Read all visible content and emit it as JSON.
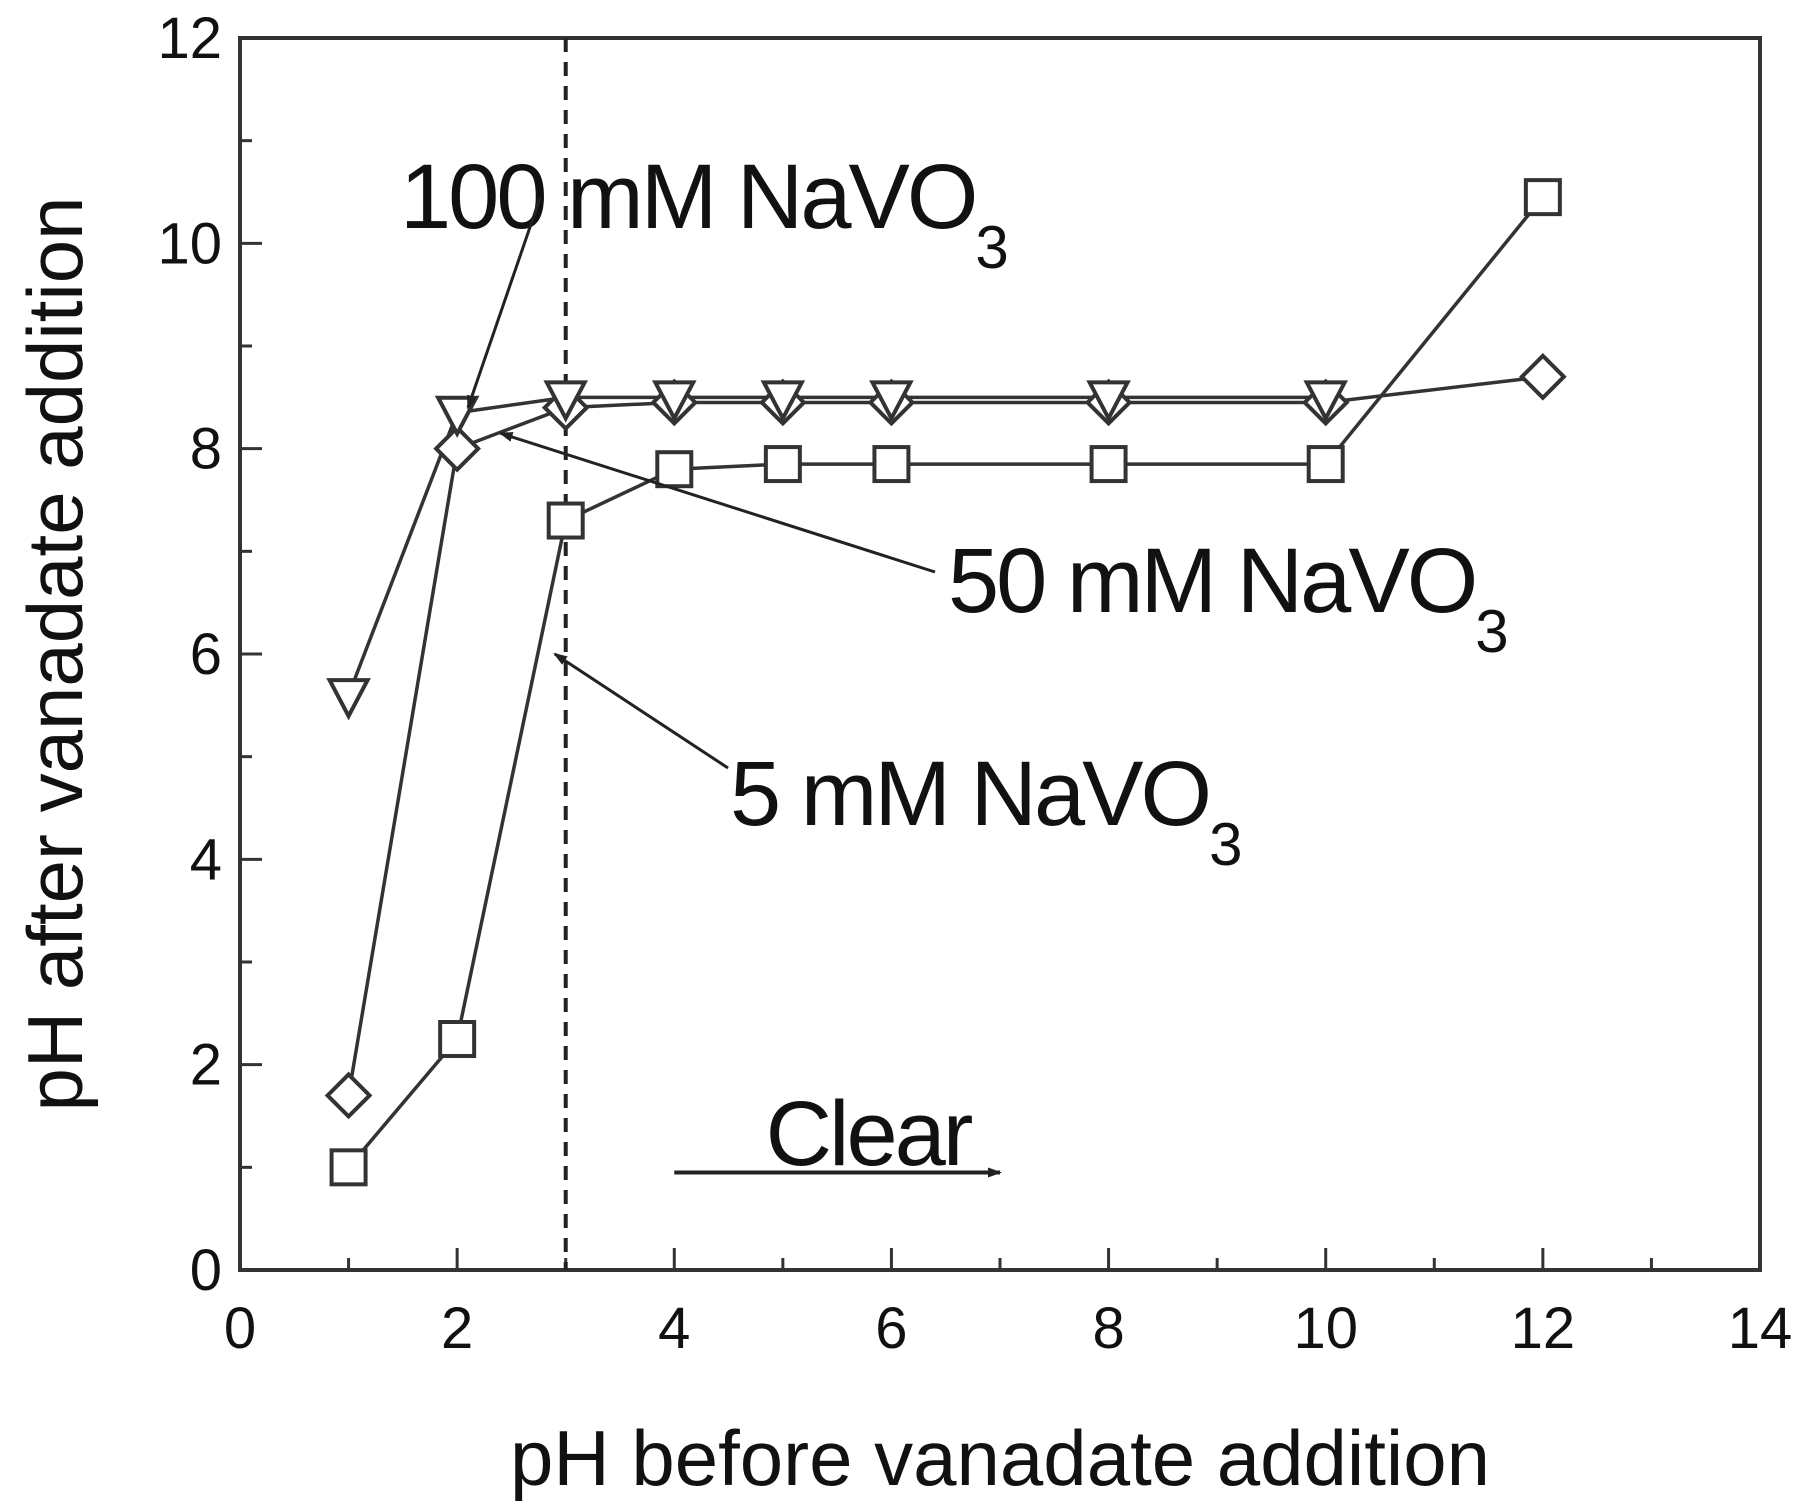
{
  "chart_data": {
    "type": "line",
    "xlabel": "pH before vanadate addition",
    "ylabel": "pH after vanadate addition",
    "xlim": [
      0,
      14
    ],
    "ylim": [
      0,
      12
    ],
    "xticks": [
      0,
      2,
      4,
      6,
      8,
      10,
      12,
      14
    ],
    "yticks": [
      0,
      2,
      4,
      6,
      8,
      10,
      12
    ],
    "grid": false,
    "reference_line": {
      "x": 3,
      "style": "dashed"
    },
    "series": [
      {
        "name": "5 mM NaVO3",
        "marker": "square",
        "x": [
          1,
          2,
          3,
          4,
          5,
          6,
          8,
          10,
          12
        ],
        "y": [
          1.0,
          2.25,
          7.3,
          7.8,
          7.85,
          7.85,
          7.85,
          7.85,
          10.45
        ]
      },
      {
        "name": "50 mM NaVO3",
        "marker": "diamond",
        "x": [
          1,
          2,
          3,
          4,
          5,
          6,
          8,
          10,
          12
        ],
        "y": [
          1.7,
          8.0,
          8.4,
          8.45,
          8.45,
          8.45,
          8.45,
          8.45,
          8.7
        ]
      },
      {
        "name": "100 mM NaVO3",
        "marker": "triangle-down",
        "x": [
          1,
          2,
          3,
          4,
          5,
          6,
          8,
          10
        ],
        "y": [
          5.6,
          8.35,
          8.5,
          8.5,
          8.5,
          8.5,
          8.5,
          8.5
        ]
      }
    ],
    "annotations": [
      {
        "id": "a100",
        "main": "100 mM NaVO",
        "sub": "3",
        "pointer_to": {
          "x": 2.1,
          "y": 8.4
        }
      },
      {
        "id": "a50",
        "main": "50 mM NaVO",
        "sub": "3",
        "pointer_to": {
          "x": 2.4,
          "y": 8.15
        }
      },
      {
        "id": "a5",
        "main": "5 mM NaVO",
        "sub": "3",
        "pointer_to": {
          "x": 2.9,
          "y": 6.0
        }
      },
      {
        "id": "clear",
        "main": "Clear",
        "sub": "",
        "arrow_from": {
          "x": 4.0,
          "y": 0.95
        },
        "arrow_to": {
          "x": 7.0,
          "y": 0.95
        }
      }
    ]
  }
}
